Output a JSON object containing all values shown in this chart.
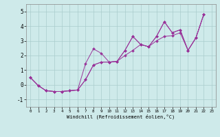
{
  "background_color": "#ceeaea",
  "grid_color": "#aacccc",
  "line_color": "#993399",
  "xlim": [
    -0.5,
    23.5
  ],
  "ylim": [
    -1.5,
    5.5
  ],
  "xticks": [
    0,
    1,
    2,
    3,
    4,
    5,
    6,
    7,
    8,
    9,
    10,
    11,
    12,
    13,
    14,
    15,
    16,
    17,
    18,
    19,
    20,
    21,
    22,
    23
  ],
  "yticks": [
    -1,
    0,
    1,
    2,
    3,
    4,
    5
  ],
  "xlabel": "Windchill (Refroidissement éolien,°C)",
  "series": [
    {
      "x": [
        0,
        1,
        2,
        3,
        4,
        5,
        6,
        7,
        8,
        9,
        10,
        11,
        12,
        13,
        14,
        15,
        16,
        17,
        18,
        19,
        20,
        21,
        22
      ],
      "y": [
        0.5,
        -0.05,
        -0.4,
        -0.45,
        -0.45,
        -0.4,
        -0.35,
        1.45,
        2.45,
        2.15,
        1.55,
        1.6,
        2.35,
        3.3,
        2.75,
        2.6,
        3.3,
        4.3,
        3.55,
        3.75,
        2.35,
        3.2,
        4.8
      ]
    },
    {
      "x": [
        0,
        1,
        2,
        3,
        4,
        5,
        6,
        7,
        8,
        9,
        10,
        11,
        12,
        13,
        14,
        15,
        16,
        17,
        18,
        19,
        20,
        21,
        22
      ],
      "y": [
        0.5,
        -0.05,
        -0.4,
        -0.45,
        -0.45,
        -0.4,
        -0.35,
        0.35,
        1.35,
        1.55,
        1.55,
        1.6,
        2.0,
        2.35,
        2.75,
        2.6,
        3.0,
        3.3,
        3.35,
        3.55,
        2.35,
        3.2,
        4.8
      ]
    },
    {
      "x": [
        0,
        1,
        2,
        3,
        4,
        5,
        6,
        7,
        8,
        9,
        10,
        11,
        12,
        13,
        14,
        15,
        16,
        17,
        18,
        19,
        20,
        21,
        22
      ],
      "y": [
        0.5,
        -0.05,
        -0.4,
        -0.45,
        -0.45,
        -0.4,
        -0.35,
        0.35,
        1.35,
        1.55,
        1.55,
        1.6,
        2.35,
        3.3,
        2.75,
        2.6,
        3.3,
        4.3,
        3.55,
        3.75,
        2.35,
        3.2,
        4.8
      ]
    }
  ]
}
